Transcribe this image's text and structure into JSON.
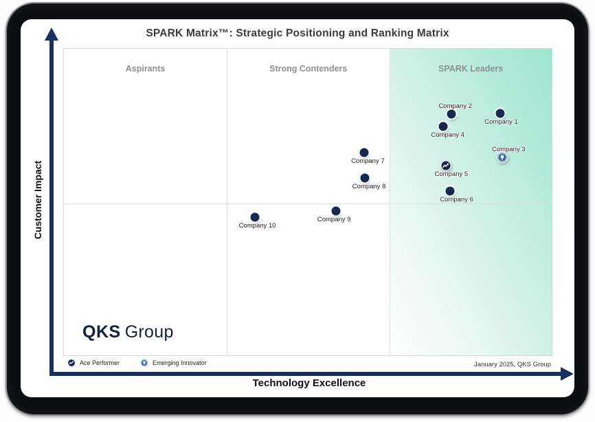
{
  "colors": {
    "navy": "#17294e",
    "axis_navy": "#1b3060",
    "emerging_blue": "#2a5fa8",
    "leader_gradient_green": "#9de5cf",
    "quadrant_label_gray": "#8b9191"
  },
  "legend": {
    "ace": "Ace Performer",
    "emerging": "Emerging Innovator"
  },
  "footer": {
    "date_note": "January 2025, QKS Group"
  },
  "logo": {
    "bold": "QKS",
    "regular": "Group"
  },
  "chart_data": {
    "type": "scatter",
    "title": "SPARK Matrix™: Strategic Positioning and Ranking Matrix",
    "xlabel": "Technology Excellence",
    "ylabel": "Customer Impact",
    "xlim": [
      0,
      100
    ],
    "ylim": [
      0,
      100
    ],
    "grid": {
      "vertical_dividers_pct": [
        33.4,
        66.8
      ],
      "horizontal_divider_top_pct": 50.4
    },
    "quadrant_labels": [
      "Aspirants",
      "Strong Contenders",
      "SPARK Leaders"
    ],
    "quadrant_label_centers_pct": [
      16.7,
      50.1,
      83.4
    ],
    "points": [
      {
        "name": "Company 1",
        "x": 89.5,
        "y": 79.0,
        "marker": "dot",
        "label_position": "below",
        "label_dx": 1
      },
      {
        "name": "Company 2",
        "x": 79.4,
        "y": 78.6,
        "marker": "dot",
        "label_position": "above",
        "label_dx": 6
      },
      {
        "name": "Company 3",
        "x": 89.9,
        "y": 64.5,
        "marker": "emerging-innovator",
        "label_position": "above",
        "label_dx": 9
      },
      {
        "name": "Company 4",
        "x": 77.7,
        "y": 74.6,
        "marker": "dot",
        "label_position": "below",
        "label_dx": 7
      },
      {
        "name": "Company 5",
        "x": 78.3,
        "y": 61.8,
        "marker": "ace-performer",
        "label_position": "below",
        "label_dx": 8
      },
      {
        "name": "Company 6",
        "x": 79.1,
        "y": 53.6,
        "marker": "dot",
        "label_position": "below",
        "label_dx": 10
      },
      {
        "name": "Company 7",
        "x": 61.6,
        "y": 66.1,
        "marker": "dot",
        "label_position": "below",
        "label_dx": 5
      },
      {
        "name": "Company 8",
        "x": 61.7,
        "y": 57.8,
        "marker": "dot",
        "label_position": "below",
        "label_dx": 6
      },
      {
        "name": "Company 9",
        "x": 55.8,
        "y": 47.1,
        "marker": "dot",
        "label_position": "below",
        "label_dx": -3
      },
      {
        "name": "Company 10",
        "x": 39.1,
        "y": 45.1,
        "marker": "dot",
        "label_position": "below",
        "label_dx": 4
      }
    ]
  }
}
